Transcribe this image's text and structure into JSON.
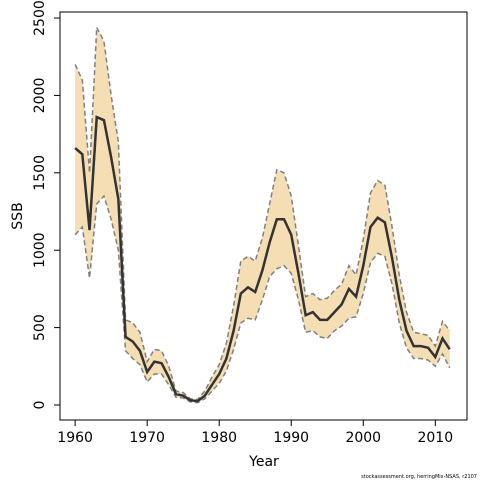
{
  "chart_data": {
    "type": "line",
    "xlabel": "Year",
    "ylabel": "SSB",
    "footer": "stockassessment.org, herringMix-NSAS, r2107",
    "x": [
      1960,
      1961,
      1962,
      1963,
      1964,
      1965,
      1966,
      1967,
      1968,
      1969,
      1970,
      1971,
      1972,
      1973,
      1974,
      1975,
      1976,
      1977,
      1978,
      1979,
      1980,
      1981,
      1982,
      1983,
      1984,
      1985,
      1986,
      1987,
      1988,
      1989,
      1990,
      1991,
      1992,
      1993,
      1994,
      1995,
      1996,
      1997,
      1998,
      1999,
      2000,
      2001,
      2002,
      2003,
      2004,
      2005,
      2006,
      2007,
      2008,
      2009,
      2010,
      2011,
      2012
    ],
    "values": [
      1660,
      1620,
      1130,
      1860,
      1840,
      1600,
      1330,
      440,
      410,
      350,
      213,
      280,
      270,
      180,
      70,
      60,
      30,
      25,
      60,
      130,
      200,
      300,
      480,
      720,
      760,
      730,
      870,
      1050,
      1200,
      1200,
      1100,
      850,
      580,
      600,
      550,
      550,
      600,
      650,
      750,
      700,
      900,
      1150,
      1210,
      1180,
      950,
      680,
      480,
      380,
      380,
      370,
      310,
      430,
      360
    ],
    "upper": [
      2200,
      2100,
      1500,
      2440,
      2350,
      2000,
      1700,
      550,
      530,
      470,
      280,
      360,
      350,
      250,
      90,
      80,
      40,
      35,
      90,
      180,
      260,
      400,
      640,
      930,
      960,
      930,
      1080,
      1300,
      1520,
      1500,
      1350,
      1030,
      700,
      720,
      680,
      690,
      740,
      780,
      900,
      840,
      1070,
      1370,
      1450,
      1420,
      1150,
      840,
      600,
      470,
      460,
      450,
      380,
      540,
      480
    ],
    "lower": [
      1100,
      1150,
      820,
      1300,
      1350,
      1200,
      1000,
      350,
      300,
      260,
      150,
      200,
      200,
      130,
      50,
      45,
      20,
      15,
      40,
      90,
      140,
      220,
      360,
      530,
      560,
      550,
      680,
      830,
      880,
      900,
      850,
      680,
      470,
      480,
      440,
      430,
      480,
      510,
      560,
      570,
      720,
      920,
      980,
      960,
      780,
      530,
      370,
      300,
      300,
      290,
      250,
      330,
      240
    ],
    "color": "#333333",
    "band_color": "#f5deb3",
    "band_line_color": "#808080",
    "xlim": [
      1957.9,
      2014.4
    ],
    "ylim": [
      -97,
      2539
    ],
    "xticks": [
      1960,
      1970,
      1980,
      1990,
      2000,
      2010
    ],
    "yticks": [
      0,
      500,
      1000,
      1500,
      2000,
      2500
    ]
  }
}
